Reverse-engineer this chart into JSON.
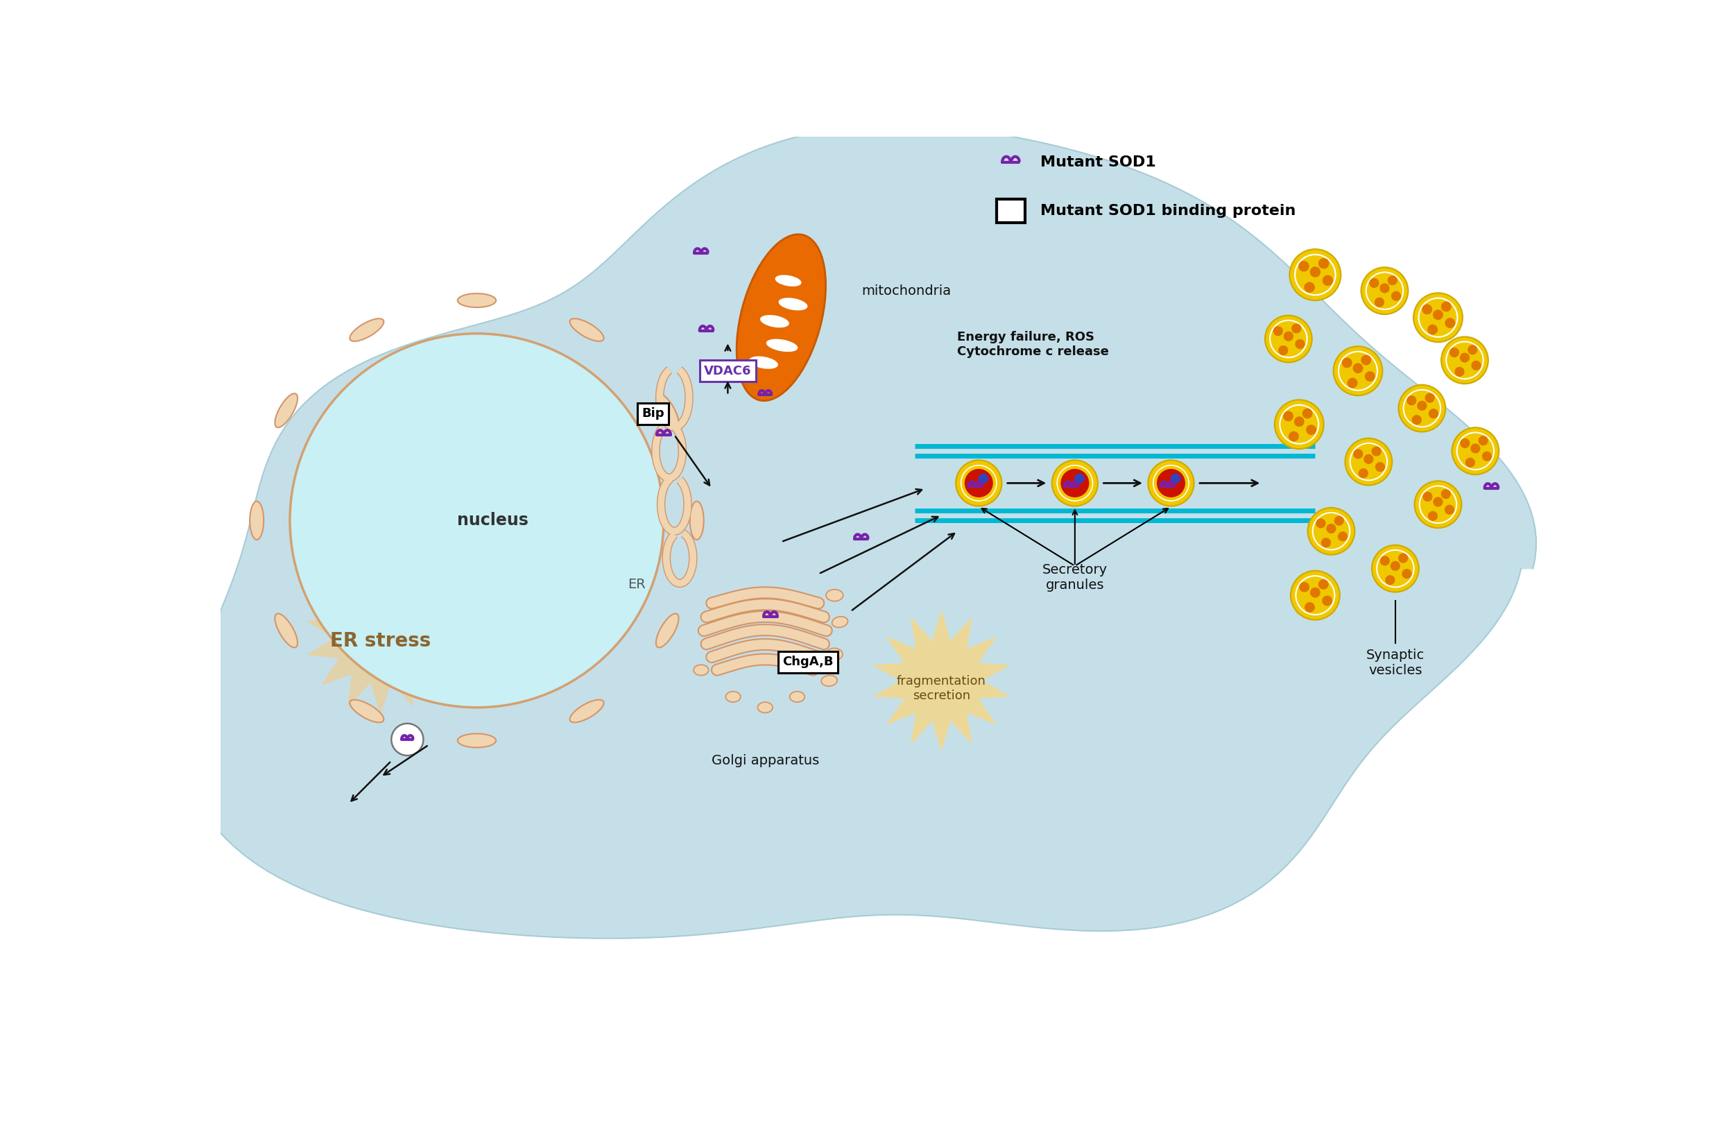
{
  "bg_color": "#ffffff",
  "cell_color": "#c5dfe8",
  "cell_outline": "#a8ccd6",
  "nucleus_color": "#c8f0f5",
  "nucleus_outline": "#d4a070",
  "er_color": "#f0d5b0",
  "er_edge": "#d4956a",
  "mito_color": "#e86a00",
  "mito_edge": "#c85800",
  "golgi_color": "#f0d5b0",
  "golgi_edge": "#d4956a",
  "purple_sod1": "#7722aa",
  "arrow_color": "#111111",
  "cyan_track": "#00b8d4",
  "granule_outer_yellow": "#f0c800",
  "granule_white_ring": "#ffffff",
  "granule_red": "#cc1100",
  "granule_blue": "#3344bb",
  "vesicle_yellow": "#f0c800",
  "vesicle_spot_orange": "#e07800",
  "label_color": "#111111",
  "vdac6_border": "#6633aa",
  "er_stress_color": "#e8d0a0",
  "frag_star_color": "#f0d890",
  "nucleus_label_color": "#333333",
  "energy_text_color": "#111111",
  "er_label_color": "#555555",
  "bip_label": "Bip",
  "chgab_label": "ChgA,B",
  "vdac6_label": "VDAC6",
  "nucleus_label": "nucleus",
  "er_label": "ER",
  "mito_label": "mitochondria",
  "golgi_label": "Golgi apparatus",
  "secretory_label": "Secretory\ngranules",
  "synaptic_label": "Synaptic\nvesicles",
  "energy_label": "Energy failure, ROS\nCytochrome c release",
  "er_stress_label": "ER stress",
  "frag_label": "fragmentation\nsecretion",
  "legend_sod1": "Mutant SOD1",
  "legend_binding": "Mutant SOD1 binding protein"
}
